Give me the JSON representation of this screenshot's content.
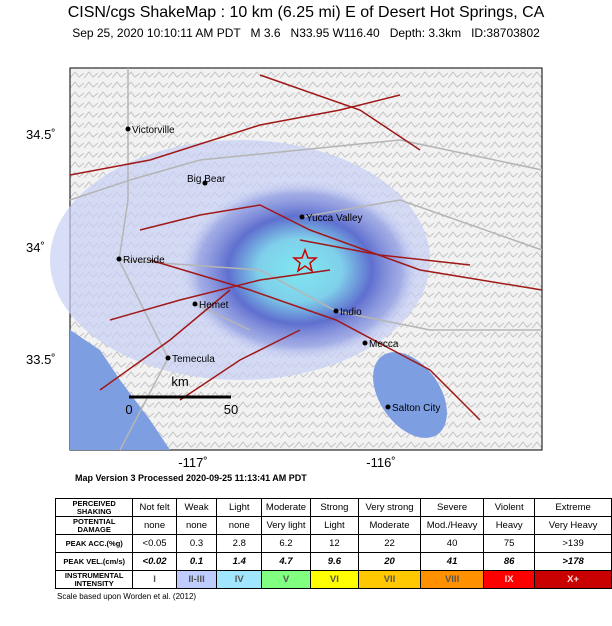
{
  "header": {
    "title": "CISN/cgs ShakeMap : 10 km (6.25 mi) E of Desert Hot Springs, CA",
    "subtitle": "Sep 25, 2020 10:10:11 AM PDT   M 3.6   N33.95 W116.40   Depth: 3.3km   ID:38703802"
  },
  "map": {
    "lat_labels": [
      "34.5˚",
      "34˚",
      "33.5˚"
    ],
    "lon_labels": [
      "-117˚",
      "-116˚"
    ],
    "places": [
      "Victorville",
      "Big Bear",
      "Yucca Valley",
      "Riverside",
      "Hemet",
      "Indio",
      "Mecca",
      "Temecula",
      "Salton City"
    ],
    "scale_bar": {
      "unit": "km",
      "start": "0",
      "end": "50"
    }
  },
  "version": "Map Version 3 Processed 2020-09-25 11:13:41 AM PDT",
  "table": {
    "rows": [
      [
        "PERCEIVED SHAKING",
        "Not felt",
        "Weak",
        "Light",
        "Moderate",
        "Strong",
        "Very strong",
        "Severe",
        "Violent",
        "Extreme"
      ],
      [
        "POTENTIAL DAMAGE",
        "none",
        "none",
        "none",
        "Very light",
        "Light",
        "Moderate",
        "Mod./Heavy",
        "Heavy",
        "Very Heavy"
      ],
      [
        "PEAK ACC.(%g)",
        "<0.05",
        "0.3",
        "2.8",
        "6.2",
        "12",
        "22",
        "40",
        "75",
        ">139"
      ],
      [
        "PEAK VEL.(cm/s)",
        "<0.02",
        "0.1",
        "1.4",
        "4.7",
        "9.6",
        "20",
        "41",
        "86",
        ">178"
      ],
      [
        "INSTRUMENTAL INTENSITY",
        "I",
        "II-III",
        "IV",
        "V",
        "VI",
        "VII",
        "VIII",
        "IX",
        "X+"
      ]
    ]
  },
  "footer": "Scale based upon Worden et al. (2012)"
}
